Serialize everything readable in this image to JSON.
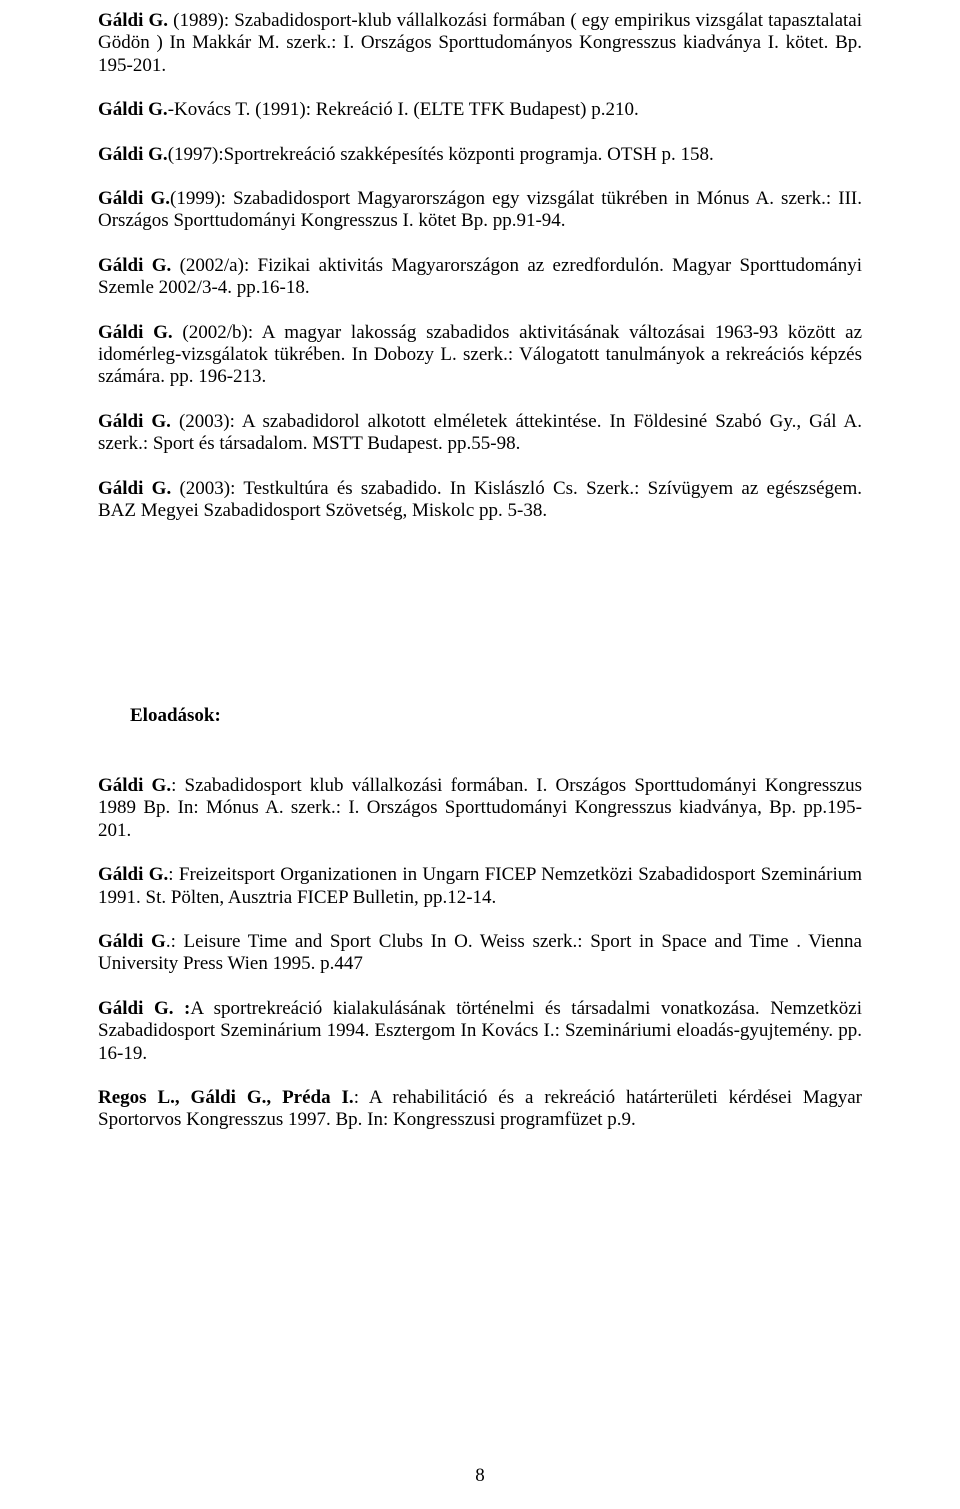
{
  "refs": [
    {
      "lead": "Gáldi G. ",
      "rest": "(1989): Szabadidosport-klub vállalkozási formában ( egy empirikus vizsgálat tapasztalatai Gödön ) In Makkár M. szerk.: I. Országos Sporttudományos Kongresszus kiadványa I. kötet. Bp. 195-201."
    },
    {
      "lead": "Gáldi G.",
      "rest": "-Kovács T. (1991): Rekreáció I. (ELTE TFK Budapest) p.210."
    },
    {
      "lead": "Gáldi G.",
      "rest": "(1997):Sportrekreáció szakképesítés központi programja. OTSH p. 158."
    },
    {
      "lead": "Gáldi G.",
      "rest": "(1999): Szabadidosport Magyarországon egy vizsgálat tükrében   in Mónus A. szerk.: III. Országos Sporttudományi Kongresszus I. kötet  Bp. pp.91-94."
    },
    {
      "lead": "Gáldi G. ",
      "rest": " (2002/a): Fizikai aktivitás Magyarországon az ezredfordulón. Magyar Sporttudományi Szemle 2002/3-4. pp.16-18."
    },
    {
      "lead": "Gáldi G. ",
      "rest": "(2002/b): A magyar lakosság szabadidos aktivitásának változásai 1963-93 között az idomérleg-vizsgálatok tükrében. In Dobozy L. szerk.: Válogatott tanulmányok a rekreációs képzés számára. pp. 196-213."
    },
    {
      "lead": "Gáldi G. ",
      "rest": "(2003): A szabadidorol alkotott elméletek áttekintése. In Földesiné Szabó Gy., Gál A. szerk.: Sport és társadalom. MSTT Budapest. pp.55-98."
    },
    {
      "lead": "Gáldi G. ",
      "rest": "(2003): Testkultúra és szabadido. In Kislászló Cs. Szerk.: Szívügyem az egészségem.   BAZ Megyei Szabadidosport Szövetség, Miskolc pp. 5-38."
    }
  ],
  "section_heading": "Eloadások:",
  "talks": [
    {
      "lead": "Gáldi G.",
      "rest": ": Szabadidosport klub vállalkozási formában.  I. Országos Sporttudományi Kongresszus 1989 Bp. In: Mónus A. szerk.: I. Országos Sporttudományi Kongresszus kiadványa, Bp. pp.195-201."
    },
    {
      "lead": "Gáldi G.",
      "rest": ": Freizeitsport Organizationen in Ungarn  FICEP Nemzetközi Szabadidosport Szeminárium  1991. St. Pölten, Ausztria FICEP Bulletin, pp.12-14."
    },
    {
      "lead": "Gáldi G",
      "rest": ".: Leisure Time and Sport Clubs     In O. Weiss szerk.: Sport in Space and Time . Vienna University Press Wien 1995. p.447"
    },
    {
      "lead": "Gáldi G. :",
      "rest": "A sportrekreáció kialakulásának történelmi és társadalmi vonatkozása.  Nemzetközi Szabadidosport Szeminárium 1994. Esztergom  In Kovács I.: Szemináriumi eloadás-gyujtemény. pp. 16-19."
    },
    {
      "lead": "Regos L., Gáldi G., Préda I.",
      "rest": ": A rehabilitáció és a rekreáció  határterületi kérdései Magyar Sportorvos Kongresszus  1997. Bp. In: Kongresszusi programfüzet p.9."
    }
  ],
  "page_number": "8"
}
